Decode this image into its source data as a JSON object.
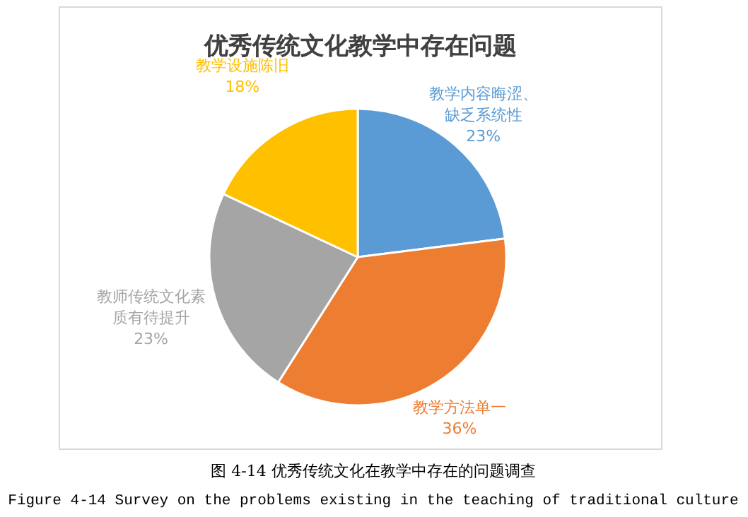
{
  "chart_data": {
    "type": "pie",
    "title": "优秀传统文化教学中存在问题",
    "categories": [
      "教学内容晦涩、缺乏系统性",
      "教学方法单一",
      "教师传统文化素质有待提升",
      "教学设施陈旧"
    ],
    "values": [
      23,
      36,
      23,
      18
    ],
    "value_labels": [
      "23%",
      "36%",
      "23%",
      "18%"
    ],
    "colors": [
      "#5b9bd5",
      "#ed7d31",
      "#a5a5a5",
      "#ffc000"
    ],
    "annotations": [
      "图 4-14 优秀传统文化在教学中存在的问题调查",
      "Figure 4-14 Survey on the problems existing in the teaching of traditional culture"
    ]
  }
}
